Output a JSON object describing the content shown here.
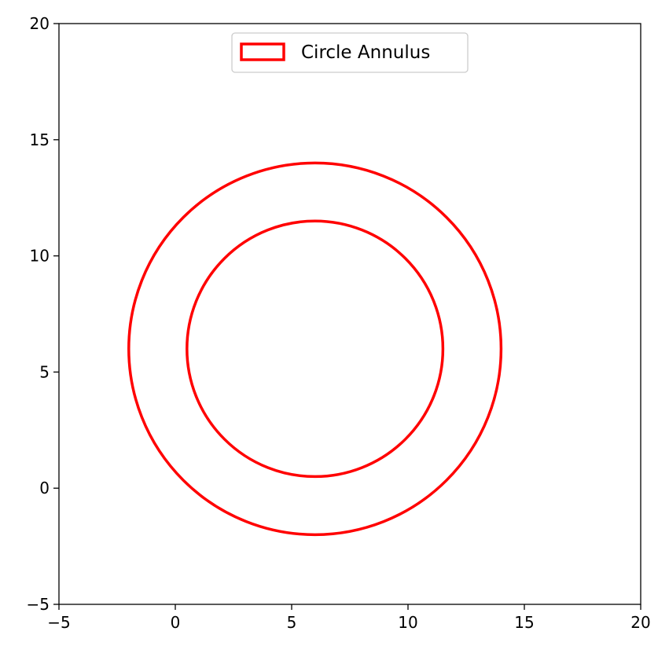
{
  "chart_data": {
    "type": "annulus",
    "title": "",
    "xlabel": "",
    "ylabel": "",
    "xlim": [
      -5,
      20
    ],
    "ylim": [
      -5,
      20
    ],
    "x_ticks": [
      -5,
      0,
      5,
      10,
      15,
      20
    ],
    "y_ticks": [
      -5,
      0,
      5,
      10,
      15,
      20
    ],
    "x_tick_labels": [
      "−5",
      "0",
      "5",
      "10",
      "15",
      "20"
    ],
    "y_tick_labels": [
      "−5",
      "0",
      "5",
      "10",
      "15",
      "20"
    ],
    "grid": false,
    "legend": {
      "placement": "upper-center",
      "entries": [
        "Circle Annulus"
      ]
    },
    "shapes": [
      {
        "name": "Circle Annulus",
        "kind": "annulus",
        "center": [
          6,
          6
        ],
        "outer_radius": 8,
        "inner_radius": 5.5,
        "edgecolor": "#ff0000",
        "facecolor": "none"
      }
    ]
  }
}
